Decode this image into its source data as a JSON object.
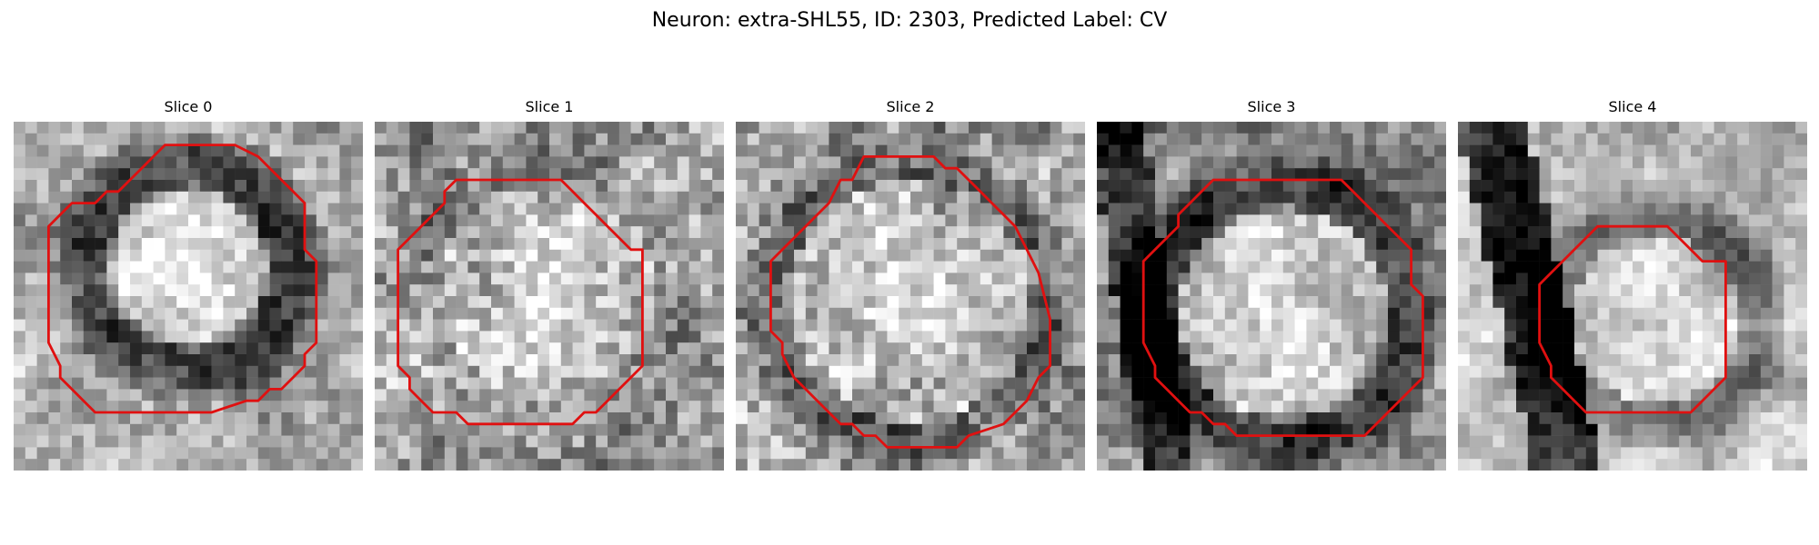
{
  "figure": {
    "title": "Neuron: extra-SHL55, ID: 2303, Predicted Label: CV"
  },
  "colors": {
    "contour": "#e01010",
    "background": "#ffffff"
  },
  "panels": [
    {
      "title": "Slice 0"
    },
    {
      "title": "Slice 1"
    },
    {
      "title": "Slice 2"
    },
    {
      "title": "Slice 3"
    },
    {
      "title": "Slice 4"
    }
  ]
}
